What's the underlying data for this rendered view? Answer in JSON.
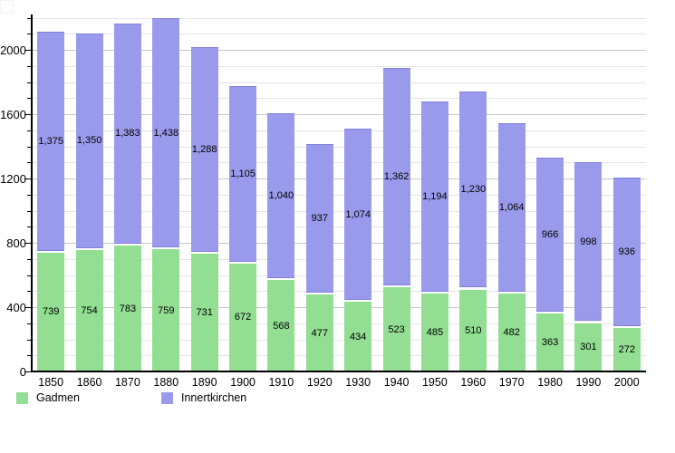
{
  "chart_data": {
    "type": "bar",
    "stacked": true,
    "title": "",
    "xlabel": "",
    "ylabel": "",
    "categories": [
      "1850",
      "1860",
      "1870",
      "1880",
      "1890",
      "1900",
      "1910",
      "1920",
      "1930",
      "1940",
      "1950",
      "1960",
      "1970",
      "1980",
      "1990",
      "2000"
    ],
    "series": [
      {
        "name": "Gadmen",
        "color": "#92de92",
        "values": [
          739,
          754,
          783,
          759,
          731,
          672,
          568,
          477,
          434,
          523,
          485,
          510,
          482,
          363,
          301,
          272
        ]
      },
      {
        "name": "Innertkirchen",
        "color": "#9a9aec",
        "values": [
          1375,
          1350,
          1383,
          1438,
          1288,
          1105,
          1040,
          937,
          1074,
          1362,
          1194,
          1230,
          1064,
          966,
          998,
          936
        ]
      }
    ],
    "ylim": [
      0,
      2200
    ],
    "y_tick_labels": [
      "0",
      "400",
      "800",
      "1200",
      "1600",
      "2000"
    ],
    "y_major_step": 400,
    "y_minor_step": 100,
    "grid": true,
    "value_labels": "centered-in-segment",
    "legend_position": "bottom-left"
  },
  "colors": {
    "gadmen_fill": "#92de92",
    "innertkirchen_fill": "#9a9aec",
    "innertkirchen_edge": "#8181dc",
    "grid_minor": "#e4e4e4",
    "grid_major": "#c8c8c8",
    "axis": "#000000",
    "text": "#000000"
  }
}
